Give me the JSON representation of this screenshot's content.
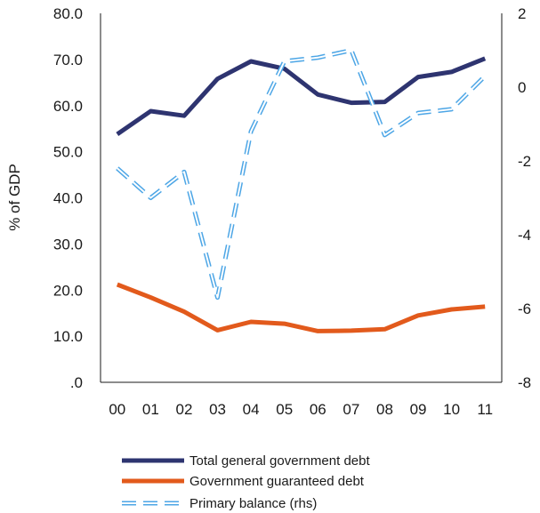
{
  "chart_data": {
    "type": "line",
    "title": "",
    "xlabel": "",
    "ylabel": "% of GDP",
    "categories": [
      "00",
      "01",
      "02",
      "03",
      "04",
      "05",
      "06",
      "07",
      "08",
      "09",
      "10",
      "11"
    ],
    "ylim": [
      0,
      80
    ],
    "yticks": [
      ".0",
      "10.0",
      "20.0",
      "30.0",
      "40.0",
      "50.0",
      "60.0",
      "70.0",
      "80.0"
    ],
    "y2lim": [
      -8,
      2
    ],
    "y2ticks": [
      "-8",
      "-6",
      "-4",
      "-2",
      "0",
      "2"
    ],
    "grid": false,
    "legend_position": "bottom",
    "series": [
      {
        "name": "Total general government debt",
        "axis": "left",
        "style": "solid",
        "color": "#2e3470",
        "values": [
          53.8,
          58.8,
          57.8,
          65.8,
          69.6,
          68.0,
          62.4,
          60.6,
          60.8,
          66.2,
          67.3,
          70.2
        ]
      },
      {
        "name": "Government guaranteed debt",
        "axis": "left",
        "style": "solid",
        "color": "#e25a1c",
        "values": [
          21.2,
          18.4,
          15.3,
          11.3,
          13.1,
          12.7,
          11.1,
          11.2,
          11.5,
          14.5,
          15.8,
          16.4
        ]
      },
      {
        "name": "Primary balance (rhs)",
        "axis": "right",
        "style": "dashed",
        "color": "#4da6e6",
        "values": [
          -2.2,
          -3.0,
          -2.3,
          -5.7,
          -1.2,
          0.7,
          0.8,
          1.0,
          -1.3,
          -0.7,
          -0.6,
          0.3
        ]
      }
    ]
  }
}
